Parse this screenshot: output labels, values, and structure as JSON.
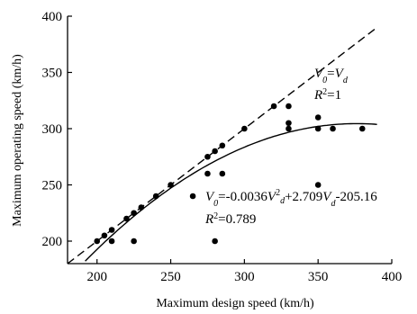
{
  "chart_data": {
    "type": "scatter",
    "title": "",
    "xlabel": "Maximum design speed (km/h)",
    "ylabel": "Maximum operating speed (km/h)",
    "xlim": [
      180,
      400
    ],
    "ylim": [
      180,
      400
    ],
    "x_ticks": [
      "200",
      "250",
      "300",
      "350",
      "400"
    ],
    "y_ticks": [
      "200",
      "250",
      "300",
      "350",
      "400"
    ],
    "grid": false,
    "series": [
      {
        "kind": "scatter",
        "points": [
          [
            200,
            200
          ],
          [
            205,
            205
          ],
          [
            210,
            210
          ],
          [
            210,
            200
          ],
          [
            220,
            220
          ],
          [
            225,
            225
          ],
          [
            225,
            200
          ],
          [
            230,
            230
          ],
          [
            240,
            240
          ],
          [
            250,
            250
          ],
          [
            265,
            240
          ],
          [
            275,
            275
          ],
          [
            275,
            260
          ],
          [
            280,
            280
          ],
          [
            280,
            200
          ],
          [
            285,
            285
          ],
          [
            285,
            260
          ],
          [
            300,
            300
          ],
          [
            320,
            320
          ],
          [
            330,
            320
          ],
          [
            330,
            305
          ],
          [
            330,
            300
          ],
          [
            350,
            310
          ],
          [
            350,
            300
          ],
          [
            350,
            250
          ],
          [
            360,
            300
          ],
          [
            380,
            300
          ]
        ]
      },
      {
        "kind": "line",
        "style": "dashed",
        "equation": "V0 = Vd",
        "x_range": [
          180,
          390
        ]
      },
      {
        "kind": "line",
        "style": "solid",
        "equation": "V0 = -0.0036 Vd^2 + 2.709 Vd - 205.16",
        "coefficients": [
          -0.0036,
          2.709,
          -205.16
        ],
        "x_range": [
          180,
          390
        ]
      }
    ],
    "annotations": {
      "dashed": {
        "lhs_var": "V",
        "lhs_sub": "0",
        "eq": "=",
        "rhs_var": "V",
        "rhs_sub": "d",
        "r2_var": "R",
        "r2_exp": "2",
        "r2_val": "=1"
      },
      "solid": {
        "lhs_var": "V",
        "lhs_sub": "0",
        "eq": "=-0.0036",
        "v1_var": "V",
        "v1_exp": "2",
        "v1_sub": "d",
        "mid": "+2.709",
        "v2_var": "V",
        "v2_sub": "d",
        "tail": "-205.16",
        "r2_var": "R",
        "r2_exp": "2",
        "r2_val": "=0.789"
      }
    }
  }
}
